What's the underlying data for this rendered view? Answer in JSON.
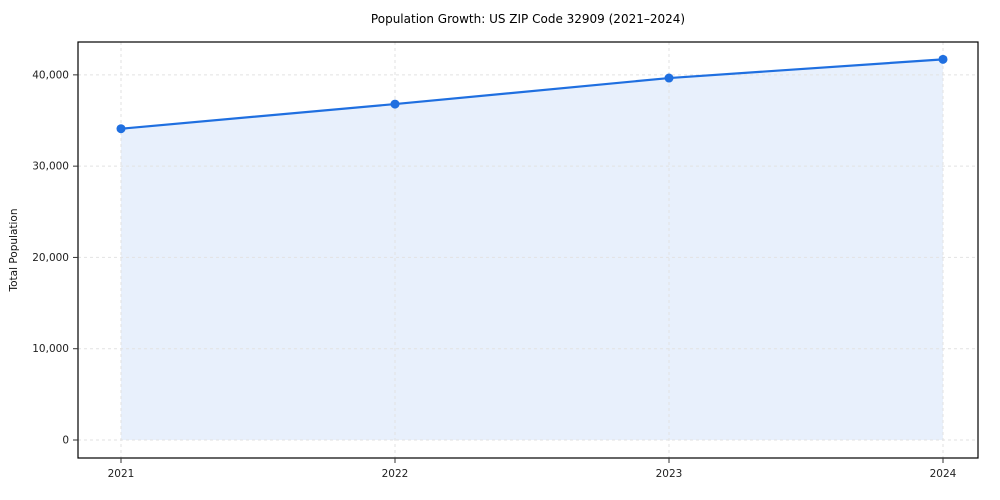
{
  "chart_data": {
    "type": "area",
    "title": "Population Growth: US ZIP Code 32909 (2021–2024)",
    "xlabel": "",
    "ylabel": "Total Population",
    "x": [
      2021,
      2022,
      2023,
      2024
    ],
    "categories": [
      "2021",
      "2022",
      "2023",
      "2024"
    ],
    "series": [
      {
        "name": "Total Population",
        "values": [
          34100,
          36800,
          39650,
          41700
        ]
      }
    ],
    "yticks": [
      0,
      10000,
      20000,
      30000,
      40000
    ],
    "ylim": [
      0,
      43600
    ],
    "grid": true,
    "grid_style": "dashed",
    "legend_position": "none",
    "colors": {
      "line": "#1f6fe0",
      "marker": "#1f6fe0",
      "fill": "#e8f0fc",
      "grid": "#e2e2e2",
      "spine": "#000000"
    }
  }
}
